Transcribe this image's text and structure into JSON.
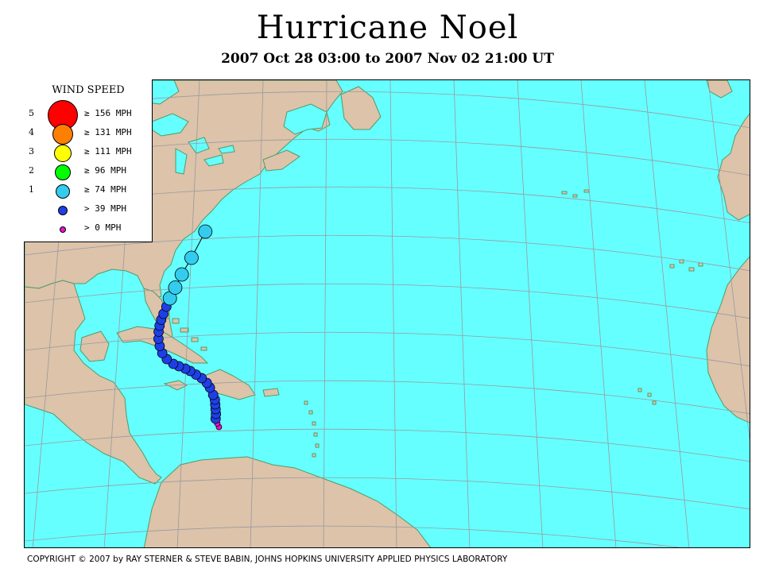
{
  "title": "Hurricane Noel",
  "subtitle": "2007 Oct 28 03:00 to 2007 Nov 02 21:00 UT",
  "legend": {
    "title": "WIND SPEED",
    "rows": [
      {
        "category": "5",
        "label": "≥ 156 MPH",
        "color": "#ff0000"
      },
      {
        "category": "4",
        "label": "≥ 131 MPH",
        "color": "#ff7f00"
      },
      {
        "category": "3",
        "label": "≥ 111 MPH",
        "color": "#ffff00"
      },
      {
        "category": "2",
        "label": "≥ 96 MPH",
        "color": "#00ff00"
      },
      {
        "category": "1",
        "label": "≥ 74 MPH",
        "color": "#33ccee"
      },
      {
        "category": "",
        "label": "> 39 MPH",
        "color": "#1f3fe6"
      },
      {
        "category": "",
        "label": "> 0 MPH",
        "color": "#ee11cc"
      }
    ]
  },
  "colors": {
    "ocean": "#66ffff",
    "land": "#dcc3aa",
    "grid": "#99999f",
    "coast": "#559966"
  },
  "track": [
    {
      "lon": -70.3,
      "lat": 15.3,
      "wind_category": "TD"
    },
    {
      "lon": -70.5,
      "lat": 15.6,
      "wind_category": "TD"
    },
    {
      "lon": -70.7,
      "lat": 16.0,
      "wind_category": "TS"
    },
    {
      "lon": -70.6,
      "lat": 16.4,
      "wind_category": "TS"
    },
    {
      "lon": -70.6,
      "lat": 16.8,
      "wind_category": "TS"
    },
    {
      "lon": -70.6,
      "lat": 17.2,
      "wind_category": "TS"
    },
    {
      "lon": -70.6,
      "lat": 17.6,
      "wind_category": "TS"
    },
    {
      "lon": -70.8,
      "lat": 18.0,
      "wind_category": "TS"
    },
    {
      "lon": -71.2,
      "lat": 18.6,
      "wind_category": "TS"
    },
    {
      "lon": -71.6,
      "lat": 19.0,
      "wind_category": "TS"
    },
    {
      "lon": -72.3,
      "lat": 19.4,
      "wind_category": "TS"
    },
    {
      "lon": -73.1,
      "lat": 19.7,
      "wind_category": "TS"
    },
    {
      "lon": -73.9,
      "lat": 20.0,
      "wind_category": "TS"
    },
    {
      "lon": -74.6,
      "lat": 20.2,
      "wind_category": "TS"
    },
    {
      "lon": -75.5,
      "lat": 20.4,
      "wind_category": "TS"
    },
    {
      "lon": -76.3,
      "lat": 20.6,
      "wind_category": "TS"
    },
    {
      "lon": -77.2,
      "lat": 21.0,
      "wind_category": "TS"
    },
    {
      "lon": -77.8,
      "lat": 21.5,
      "wind_category": "TS"
    },
    {
      "lon": -78.1,
      "lat": 22.1,
      "wind_category": "TS"
    },
    {
      "lon": -78.2,
      "lat": 22.7,
      "wind_category": "TS"
    },
    {
      "lon": -78.1,
      "lat": 23.3,
      "wind_category": "TS"
    },
    {
      "lon": -77.9,
      "lat": 23.8,
      "wind_category": "TS"
    },
    {
      "lon": -77.6,
      "lat": 24.3,
      "wind_category": "TS"
    },
    {
      "lon": -77.2,
      "lat": 24.8,
      "wind_category": "TS"
    },
    {
      "lon": -76.7,
      "lat": 25.4,
      "wind_category": "TS"
    },
    {
      "lon": -76.1,
      "lat": 26.1,
      "wind_category": "H1"
    },
    {
      "lon": -75.2,
      "lat": 27.0,
      "wind_category": "H1"
    },
    {
      "lon": -74.1,
      "lat": 28.1,
      "wind_category": "H1"
    },
    {
      "lon": -72.5,
      "lat": 29.5,
      "wind_category": "H1"
    },
    {
      "lon": -70.2,
      "lat": 31.7,
      "wind_category": "H1"
    }
  ],
  "copyright": "COPYRIGHT © 2007 by RAY STERNER & STEVE BABIN, JOHNS HOPKINS UNIVERSITY APPLIED PHYSICS LABORATORY"
}
